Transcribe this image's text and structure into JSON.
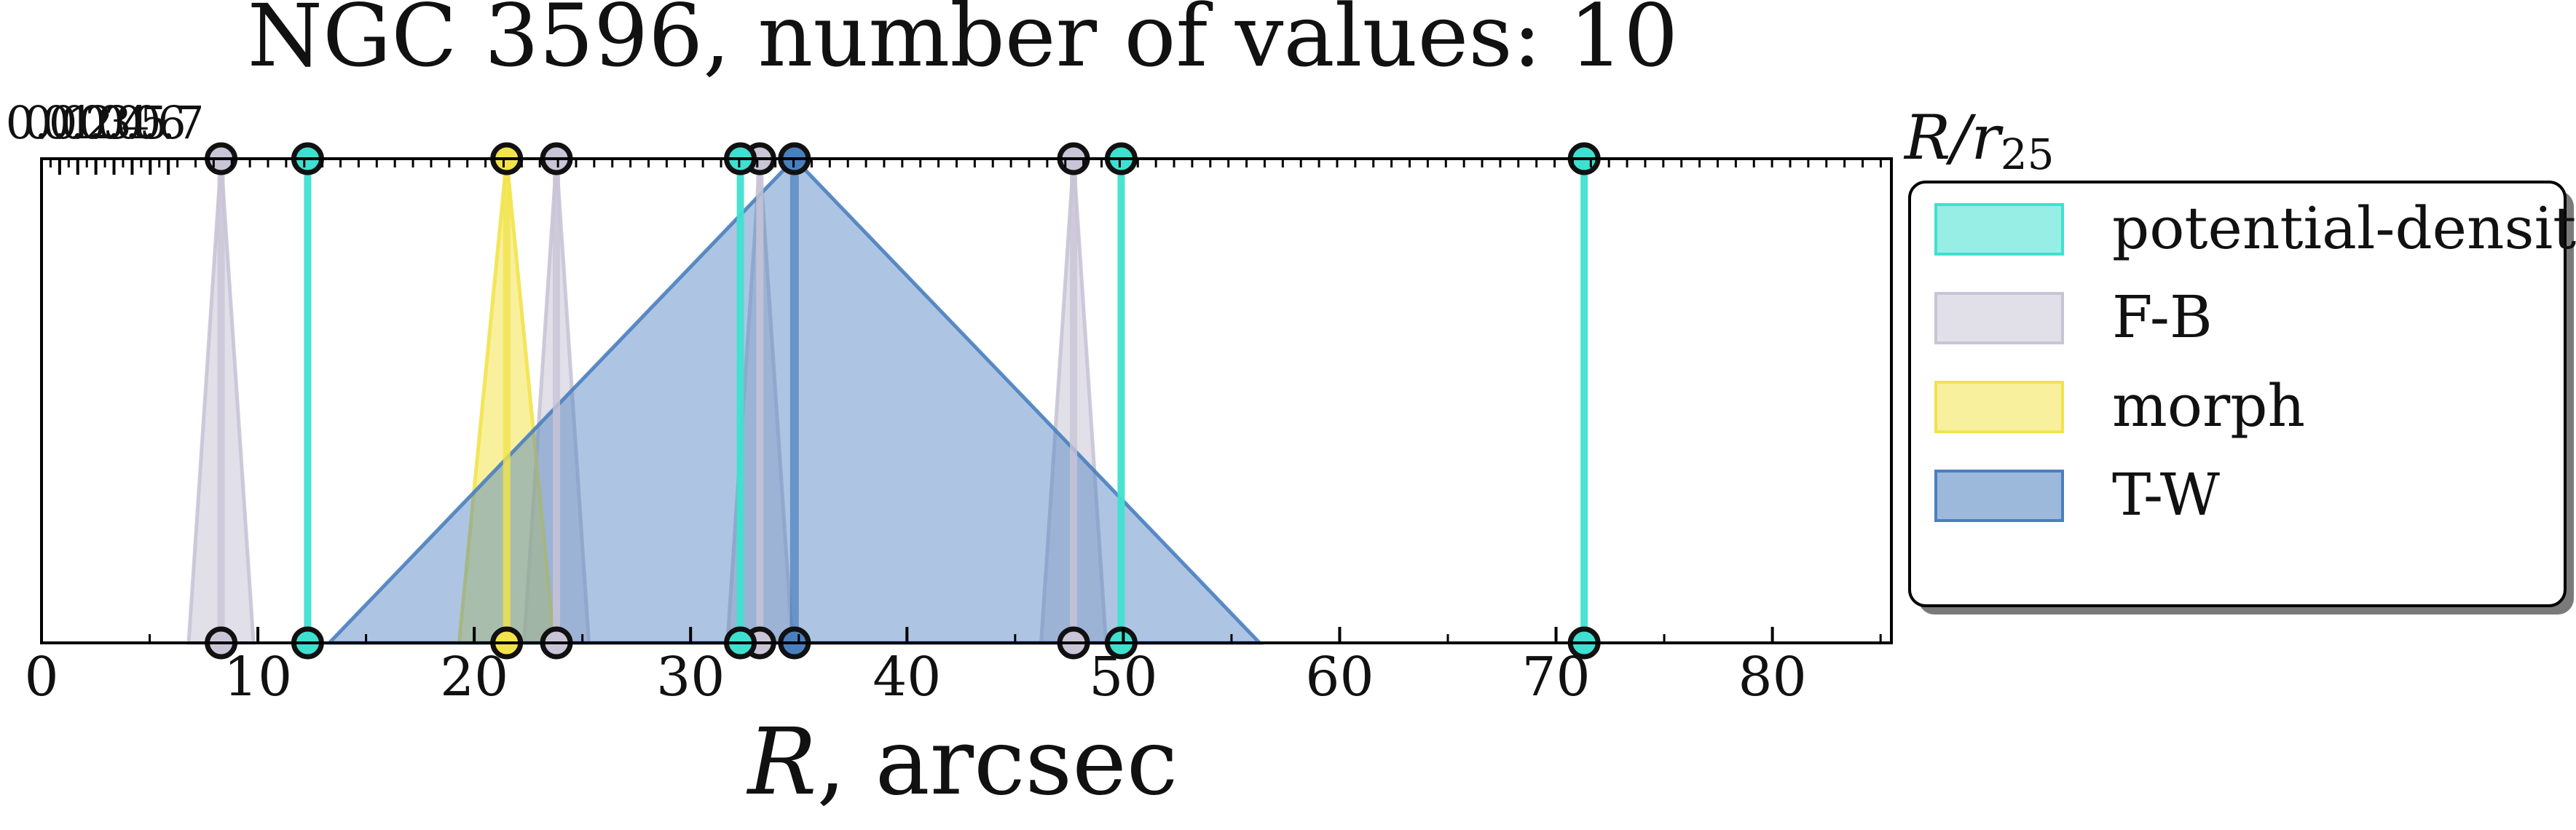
{
  "chart_data": {
    "type": "area",
    "title": "NGC 3596, number of values: 10",
    "xlabel": "R, arcsec",
    "xlabel_main": "R",
    "xlabel_unit": ", arcsec",
    "top_axis_label": "R/r",
    "top_axis_label_main": "R/r",
    "top_axis_label_sub": "25",
    "xlim": [
      0,
      85.5
    ],
    "ylim": [
      0,
      1
    ],
    "top_axis_ratio": 0.1194,
    "x_ticks": [
      0,
      10,
      20,
      30,
      40,
      50,
      60,
      70,
      80
    ],
    "x_tick_labels": [
      "0",
      "10",
      "20",
      "30",
      "40",
      "50",
      "60",
      "70",
      "80"
    ],
    "top_ticks": [
      0.0,
      0.1,
      0.2,
      0.3,
      0.4,
      0.5,
      0.6,
      0.7
    ],
    "top_tick_labels": [
      "0.0",
      "0.1",
      "0.2",
      "0.3",
      "0.4",
      "0.5",
      "0.6",
      "0.7"
    ],
    "grid": false,
    "legend_placement": "outside-right",
    "legend": [
      {
        "name": "potential-density",
        "color": "#40e0d0"
      },
      {
        "name": "F-B",
        "color": "#c9c4d6"
      },
      {
        "name": "morph",
        "color": "#f2e34c"
      },
      {
        "name": "T-W",
        "color": "#4a7fbf"
      }
    ],
    "series": [
      {
        "name": "potential-density",
        "color": "#40e0d0",
        "values": [
          {
            "r": 12.3,
            "err": 0
          },
          {
            "r": 32.3,
            "err": 0
          },
          {
            "r": 49.9,
            "err": 0
          },
          {
            "r": 71.3,
            "err": 0
          }
        ]
      },
      {
        "name": "F-B",
        "color": "#c9c4d6",
        "values": [
          {
            "r": 8.3,
            "err": 1.5
          },
          {
            "r": 23.8,
            "err": 1.5
          },
          {
            "r": 33.2,
            "err": 1.5
          },
          {
            "r": 47.7,
            "err": 1.5
          }
        ]
      },
      {
        "name": "morph",
        "color": "#f2e34c",
        "values": [
          {
            "r": 21.5,
            "err": 2.2
          }
        ]
      },
      {
        "name": "T-W",
        "color": "#4a7fbf",
        "values": [
          {
            "r": 34.8,
            "err": 21.5
          }
        ]
      }
    ]
  }
}
